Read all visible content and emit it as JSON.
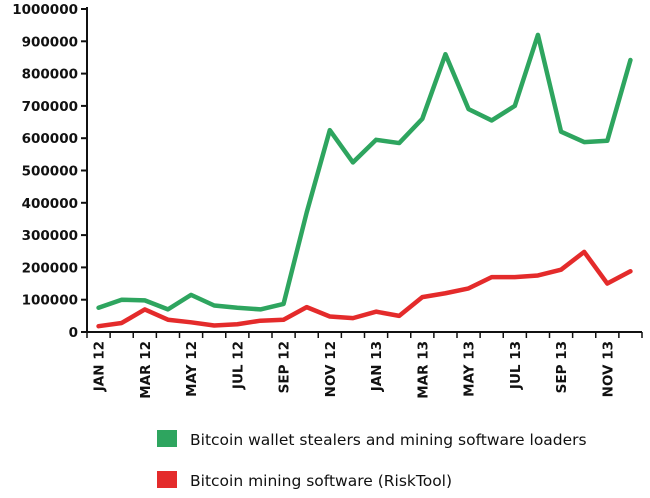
{
  "chart_data": {
    "type": "line",
    "title": "",
    "xlabel": "",
    "ylabel": "",
    "ylim": [
      0,
      1000000
    ],
    "grid": false,
    "legend_position": "bottom",
    "y_ticks": [
      "0",
      "100000",
      "200000",
      "300000",
      "400000",
      "500000",
      "600000",
      "700000",
      "800000",
      "900000",
      "1000000"
    ],
    "x_tick_labels": [
      "JAN 12",
      "MAR 12",
      "MAY 12",
      "JUL 12",
      "SEP 12",
      "NOV 12",
      "JAN 13",
      "MAR 13",
      "MAY 13",
      "JUL 13",
      "SEP 13",
      "NOV 13"
    ],
    "x": [
      "JAN 12",
      "FEB 12",
      "MAR 12",
      "APR 12",
      "MAY 12",
      "JUN 12",
      "JUL 12",
      "AUG 12",
      "SEP 12",
      "OCT 12",
      "NOV 12",
      "DEC 12",
      "JAN 13",
      "FEB 13",
      "MAR 13",
      "APR 13",
      "MAY 13",
      "JUN 13",
      "JUL 13",
      "AUG 13",
      "SEP 13",
      "OCT 13",
      "NOV 13",
      "DEC 13"
    ],
    "series": [
      {
        "name": "Bitcoin wallet stealers and mining software loaders",
        "color": "#2ea55f",
        "values": [
          75000,
          100000,
          98000,
          70000,
          115000,
          82000,
          75000,
          70000,
          87000,
          370000,
          625000,
          525000,
          595000,
          585000,
          660000,
          860000,
          690000,
          655000,
          700000,
          920000,
          620000,
          588000,
          592000,
          842000
        ]
      },
      {
        "name": "Bitcoin mining software (RiskTool)",
        "color": "#e42b2b",
        "values": [
          18000,
          28000,
          70000,
          38000,
          30000,
          20000,
          24000,
          35000,
          38000,
          77000,
          48000,
          43000,
          63000,
          50000,
          108000,
          120000,
          135000,
          170000,
          170000,
          175000,
          193000,
          248000,
          150000,
          188000
        ]
      }
    ]
  }
}
